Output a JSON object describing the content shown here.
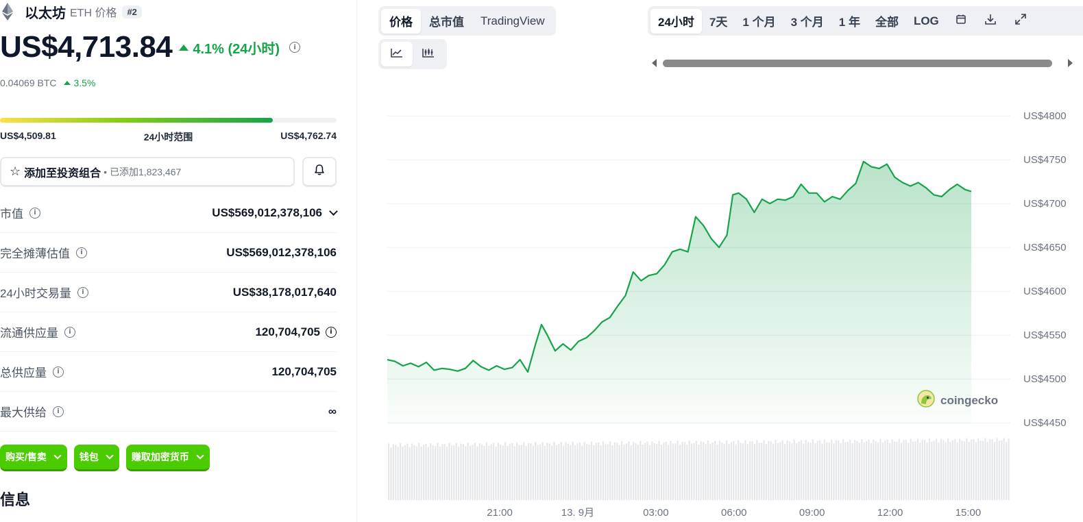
{
  "coin": {
    "name": "以太坊",
    "subtitle": "ETH 价格",
    "rank": "#2",
    "price": "US$4,713.84",
    "change_24h": "4.1% (24小时)",
    "btc_price": "0.04069 BTC",
    "btc_change": "3.5%",
    "range_24h": {
      "low": "US$4,509.81",
      "high": "US$4,762.74",
      "label": "24小时范围",
      "fill_fraction": 0.81
    }
  },
  "portfolio": {
    "add_label": "添加至投资组合",
    "added_count": "已添加1,823,467",
    "separator": "•"
  },
  "stats": [
    {
      "label": "市值",
      "value": "US$569,012,378,106",
      "has_dropdown": true,
      "value_info": false
    },
    {
      "label": "完全摊薄估值",
      "value": "US$569,012,378,106",
      "has_dropdown": false,
      "value_info": false
    },
    {
      "label": "24小时交易量",
      "value": "US$38,178,017,640",
      "has_dropdown": false,
      "value_info": false
    },
    {
      "label": "流通供应量",
      "value": "120,704,705",
      "has_dropdown": false,
      "value_info": true
    },
    {
      "label": "总供应量",
      "value": "120,704,705",
      "has_dropdown": false,
      "value_info": false
    },
    {
      "label": "最大供给",
      "value": "∞",
      "has_dropdown": false,
      "value_info": false
    }
  ],
  "actions": [
    {
      "label": "购买/售卖"
    },
    {
      "label": "钱包"
    },
    {
      "label": "赚取加密货币"
    }
  ],
  "section_title": "信息",
  "chart_tabs": {
    "metric": [
      "价格",
      "总市值",
      "TradingView"
    ],
    "metric_active": 0,
    "ranges": [
      "24小时",
      "7天",
      "1 个月",
      "3 个月",
      "1 年",
      "全部",
      "LOG"
    ],
    "range_active": 0,
    "type_icons": [
      "line-chart-icon",
      "candlestick-icon"
    ],
    "type_active": 0
  },
  "watermark": "coingecko",
  "colors": {
    "accent_green": "#16a34a",
    "button_green": "#4bcc00",
    "line": "#16a34a"
  },
  "chart_data": {
    "type": "area",
    "y_ticks": [
      "US$4800",
      "US$4750",
      "US$4700",
      "US$4650",
      "US$4600",
      "US$4550",
      "US$4500",
      "US$4450"
    ],
    "ylim": [
      4440,
      4815
    ],
    "x_ticks": [
      "21:00",
      "13. 9月",
      "03:00",
      "06:00",
      "09:00",
      "12:00",
      "15:00"
    ],
    "x_tick_hours": [
      2.88,
      4.88,
      6.88,
      8.88,
      10.88,
      12.88,
      14.88
    ],
    "x_range_hours": [
      0,
      15.96
    ],
    "grid": true,
    "series": [
      {
        "values": [
          [
            0.0,
            4522
          ],
          [
            0.2,
            4520
          ],
          [
            0.4,
            4515
          ],
          [
            0.6,
            4518
          ],
          [
            0.8,
            4514
          ],
          [
            1.0,
            4519
          ],
          [
            1.2,
            4510
          ],
          [
            1.4,
            4512
          ],
          [
            1.6,
            4511
          ],
          [
            1.8,
            4509
          ],
          [
            2.0,
            4512
          ],
          [
            2.2,
            4521
          ],
          [
            2.4,
            4514
          ],
          [
            2.6,
            4510
          ],
          [
            2.8,
            4515
          ],
          [
            3.0,
            4511
          ],
          [
            3.2,
            4513
          ],
          [
            3.4,
            4522
          ],
          [
            3.6,
            4508
          ],
          [
            3.8,
            4540
          ],
          [
            3.95,
            4562
          ],
          [
            4.1,
            4550
          ],
          [
            4.3,
            4532
          ],
          [
            4.5,
            4540
          ],
          [
            4.7,
            4533
          ],
          [
            4.9,
            4543
          ],
          [
            5.1,
            4547
          ],
          [
            5.3,
            4555
          ],
          [
            5.5,
            4565
          ],
          [
            5.7,
            4570
          ],
          [
            5.9,
            4583
          ],
          [
            6.1,
            4595
          ],
          [
            6.3,
            4622
          ],
          [
            6.5,
            4612
          ],
          [
            6.7,
            4618
          ],
          [
            6.9,
            4620
          ],
          [
            7.1,
            4630
          ],
          [
            7.3,
            4645
          ],
          [
            7.5,
            4648
          ],
          [
            7.7,
            4645
          ],
          [
            7.9,
            4685
          ],
          [
            8.1,
            4675
          ],
          [
            8.3,
            4660
          ],
          [
            8.5,
            4650
          ],
          [
            8.7,
            4664
          ],
          [
            8.85,
            4710
          ],
          [
            9.0,
            4712
          ],
          [
            9.2,
            4705
          ],
          [
            9.4,
            4690
          ],
          [
            9.6,
            4705
          ],
          [
            9.8,
            4700
          ],
          [
            10.0,
            4705
          ],
          [
            10.2,
            4704
          ],
          [
            10.4,
            4708
          ],
          [
            10.6,
            4722
          ],
          [
            10.8,
            4712
          ],
          [
            11.0,
            4712
          ],
          [
            11.2,
            4702
          ],
          [
            11.4,
            4708
          ],
          [
            11.6,
            4705
          ],
          [
            11.8,
            4715
          ],
          [
            12.0,
            4723
          ],
          [
            12.2,
            4748
          ],
          [
            12.4,
            4742
          ],
          [
            12.6,
            4740
          ],
          [
            12.8,
            4745
          ],
          [
            13.0,
            4730
          ],
          [
            13.2,
            4724
          ],
          [
            13.4,
            4720
          ],
          [
            13.6,
            4724
          ],
          [
            13.8,
            4718
          ],
          [
            14.0,
            4710
          ],
          [
            14.2,
            4708
          ],
          [
            14.4,
            4716
          ],
          [
            14.6,
            4722
          ],
          [
            14.8,
            4716
          ],
          [
            14.96,
            4713.84
          ]
        ]
      }
    ],
    "volume_bars": "present"
  }
}
